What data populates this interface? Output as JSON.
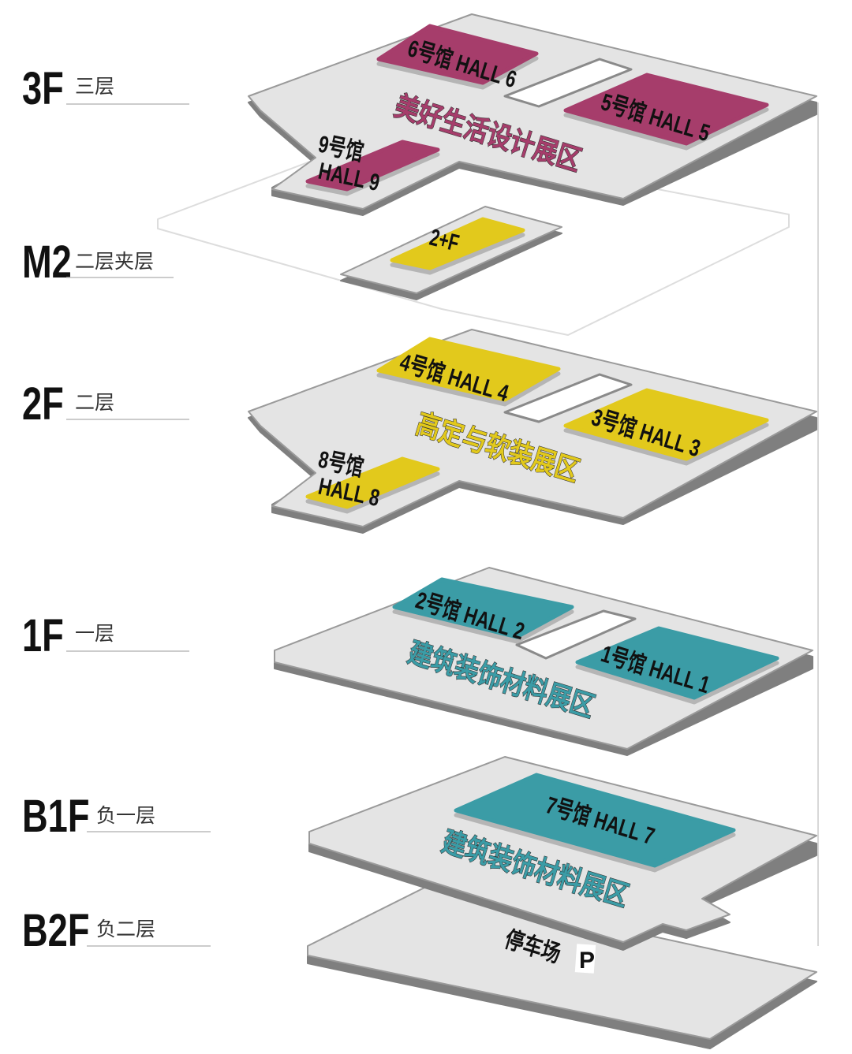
{
  "colors": {
    "magenta": "#a63d6b",
    "yellow": "#e2c91c",
    "teal": "#3b9ca6",
    "platform": "#e4e4e4"
  },
  "floors": [
    {
      "code": "3F",
      "name": "三层",
      "zone": "美好生活设计展区",
      "halls": [
        "6号馆 HALL 6",
        "5号馆 HALL 5",
        "9号馆",
        "HALL 9"
      ]
    },
    {
      "code": "M2",
      "name": "二层夹层",
      "halls": [
        "2+F"
      ]
    },
    {
      "code": "2F",
      "name": "二层",
      "zone": "高定与软装展区",
      "halls": [
        "4号馆 HALL 4",
        "3号馆 HALL 3",
        "8号馆",
        "HALL 8"
      ]
    },
    {
      "code": "1F",
      "name": "一层",
      "zone": "建筑装饰材料展区",
      "halls": [
        "2号馆 HALL 2",
        "1号馆 HALL 1"
      ]
    },
    {
      "code": "B1F",
      "name": "负一层",
      "zone": "建筑装饰材料展区",
      "halls": [
        "7号馆 HALL 7"
      ]
    },
    {
      "code": "B2F",
      "name": "负二层",
      "zone": "停车场",
      "parking_icon": "P"
    }
  ]
}
